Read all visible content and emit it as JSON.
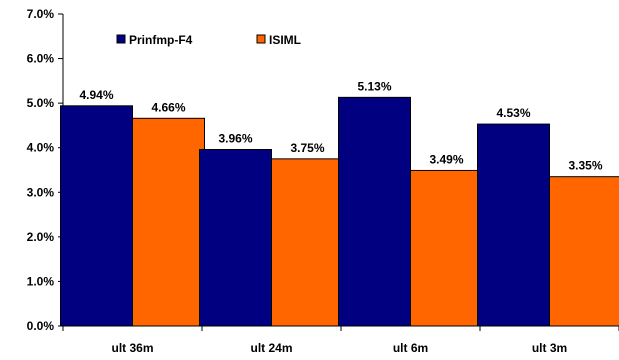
{
  "chart_data": {
    "type": "bar",
    "title": "",
    "xlabel": "",
    "ylabel": "",
    "categories": [
      "ult 36m",
      "ult 24m",
      "ult 6m",
      "ult 3m"
    ],
    "series": [
      {
        "name": "Prinfmp-F4",
        "values": [
          4.94,
          3.96,
          5.13,
          4.53
        ],
        "labels": [
          "4.94%",
          "3.96%",
          "5.13%",
          "4.53%"
        ],
        "color": "#000080"
      },
      {
        "name": "ISIML",
        "values": [
          4.66,
          3.75,
          3.49,
          3.35
        ],
        "labels": [
          "4.66%",
          "3.75%",
          "3.49%",
          "3.35%"
        ],
        "color": "#FF6600"
      }
    ],
    "ylim": [
      0,
      7
    ],
    "yticks": [
      0,
      1,
      2,
      3,
      4,
      5,
      6,
      7
    ],
    "ytick_labels": [
      "0.0%",
      "1.0%",
      "2.0%",
      "3.0%",
      "4.0%",
      "5.0%",
      "6.0%",
      "7.0%"
    ],
    "grid": false,
    "legend_position": "top-left"
  }
}
